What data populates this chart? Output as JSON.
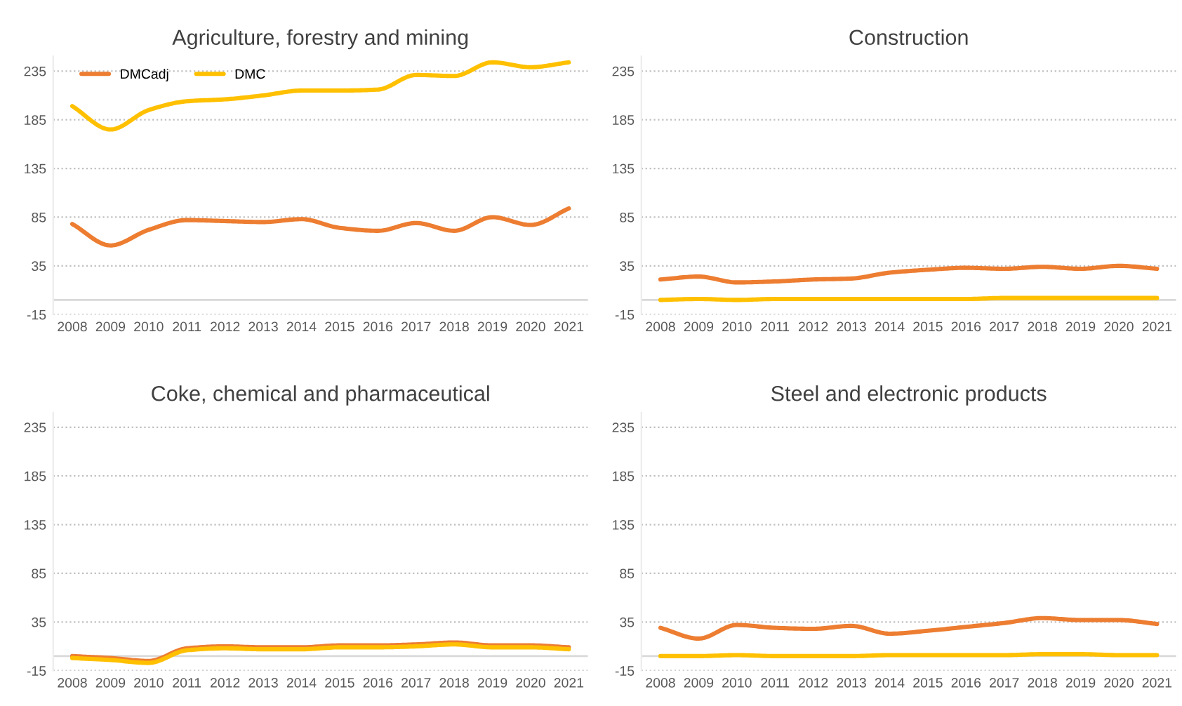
{
  "chart_data": [
    {
      "type": "line",
      "title": "Agriculture, forestry and mining",
      "categories": [
        "2008",
        "2009",
        "2010",
        "2011",
        "2012",
        "2013",
        "2014",
        "2015",
        "2016",
        "2017",
        "2018",
        "2019",
        "2020",
        "2021"
      ],
      "ylim": [
        -15,
        250
      ],
      "yticks": [
        -15,
        35,
        85,
        135,
        185,
        235
      ],
      "grid": "y",
      "legend": "top left",
      "line_style": "solid",
      "marker": "none",
      "ref_lines": [
        {
          "axis": "y",
          "value": 0,
          "color": "#d9d9d9"
        }
      ],
      "series": [
        {
          "name": "DMCadj",
          "color": "#ed7d31",
          "values": [
            78,
            56,
            72,
            82,
            81,
            80,
            83,
            74,
            71,
            79,
            71,
            85,
            77,
            94
          ]
        },
        {
          "name": "DMC",
          "color": "#ffc000",
          "values": [
            199,
            175,
            195,
            204,
            206,
            210,
            215,
            215,
            216,
            231,
            230,
            244,
            239,
            244
          ]
        }
      ]
    },
    {
      "type": "line",
      "title": "Construction",
      "categories": [
        "2008",
        "2009",
        "2010",
        "2011",
        "2012",
        "2013",
        "2014",
        "2015",
        "2016",
        "2017",
        "2018",
        "2019",
        "2020",
        "2021"
      ],
      "ylim": [
        -15,
        250
      ],
      "yticks": [
        -15,
        35,
        85,
        135,
        185,
        235
      ],
      "grid": "y",
      "line_style": "solid",
      "marker": "none",
      "ref_lines": [
        {
          "axis": "y",
          "value": 0,
          "color": "#d9d9d9"
        }
      ],
      "series": [
        {
          "color": "#ed7d31",
          "values": [
            21,
            24,
            18,
            19,
            21,
            22,
            28,
            31,
            33,
            32,
            34,
            32,
            35,
            32
          ]
        },
        {
          "color": "#ffc000",
          "values": [
            0,
            1,
            0,
            1,
            1,
            1,
            1,
            1,
            1,
            2,
            2,
            2,
            2,
            2
          ]
        }
      ]
    },
    {
      "type": "line",
      "title": "Coke, chemical and pharmaceutical",
      "categories": [
        "2008",
        "2009",
        "2010",
        "2011",
        "2012",
        "2013",
        "2014",
        "2015",
        "2016",
        "2017",
        "2018",
        "2019",
        "2020",
        "2021"
      ],
      "ylim": [
        -15,
        250
      ],
      "yticks": [
        -15,
        35,
        85,
        135,
        185,
        235
      ],
      "grid": "y",
      "line_style": "solid",
      "marker": "none",
      "ref_lines": [
        {
          "axis": "y",
          "value": 0,
          "color": "#d9d9d9"
        }
      ],
      "series": [
        {
          "color": "#ed7d31",
          "values": [
            0,
            -2,
            -5,
            8,
            10,
            9,
            9,
            11,
            11,
            12,
            14,
            11,
            11,
            9
          ]
        },
        {
          "color": "#ffc000",
          "values": [
            -2,
            -4,
            -7,
            6,
            8,
            7,
            7,
            9,
            9,
            10,
            12,
            9,
            9,
            7
          ]
        }
      ]
    },
    {
      "type": "line",
      "title": "Steel and electronic products",
      "categories": [
        "2008",
        "2009",
        "2010",
        "2011",
        "2012",
        "2013",
        "2014",
        "2015",
        "2016",
        "2017",
        "2018",
        "2019",
        "2020",
        "2021"
      ],
      "ylim": [
        -15,
        250
      ],
      "yticks": [
        -15,
        35,
        85,
        135,
        185,
        235
      ],
      "grid": "y",
      "line_style": "solid",
      "marker": "none",
      "ref_lines": [
        {
          "axis": "y",
          "value": 0,
          "color": "#d9d9d9"
        }
      ],
      "series": [
        {
          "color": "#ed7d31",
          "values": [
            29,
            18,
            32,
            29,
            28,
            31,
            23,
            26,
            30,
            34,
            39,
            37,
            37,
            33
          ]
        },
        {
          "color": "#ffc000",
          "values": [
            0,
            0,
            1,
            0,
            0,
            0,
            1,
            1,
            1,
            1,
            2,
            2,
            1,
            1
          ]
        }
      ]
    }
  ]
}
